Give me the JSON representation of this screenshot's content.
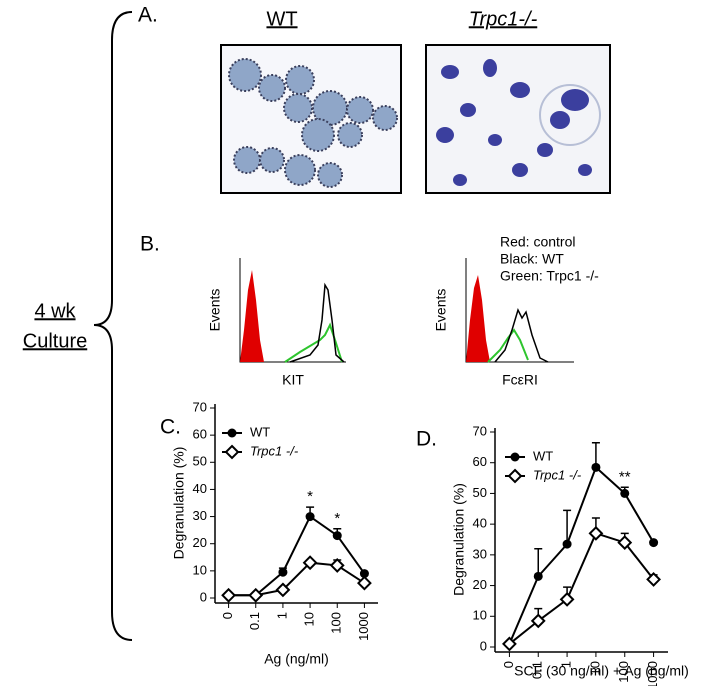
{
  "figure": {
    "side_label": [
      "4 wk",
      "Culture"
    ],
    "panel_a": {
      "label": "A.",
      "wt": "WT",
      "ko": "Trpc1-/-"
    },
    "panel_b": {
      "label": "B.",
      "legend": [
        "Red: control",
        "Black: WT",
        "Green: Trpc1 -/-"
      ],
      "y_label": "Events",
      "x_labels": [
        "KIT",
        "FcεRI"
      ]
    }
  },
  "chart_data": [
    {
      "type": "line",
      "label": "C.",
      "x_label": "Ag (ng/ml)",
      "y_label": "Degranulation (%)",
      "categories": [
        "0",
        "0.1",
        "1",
        "10",
        "100",
        "1000"
      ],
      "ylim": [
        0,
        70
      ],
      "yticks": [
        0,
        10,
        20,
        30,
        40,
        50,
        60,
        70
      ],
      "series": [
        {
          "name": "WT",
          "color": "#000000",
          "marker": "circle",
          "values": [
            1,
            1,
            9.5,
            30,
            23,
            9
          ],
          "errors": [
            0,
            0,
            1.5,
            3.5,
            2.5,
            0
          ]
        },
        {
          "name": "Trpc1 -/-",
          "color": "#000000",
          "marker": "diamond",
          "values": [
            1,
            1,
            3,
            13,
            12,
            5.5
          ],
          "errors": [
            0,
            0,
            1,
            0,
            2,
            0
          ]
        }
      ],
      "annotations": [
        "*",
        "*"
      ]
    },
    {
      "type": "line",
      "label": "D.",
      "x_label": "SCF (30 ng/ml) + Ag (ng/ml)",
      "y_label": "Degranulation (%)",
      "categories": [
        "0",
        "0.1",
        "1",
        "10",
        "100",
        "1000"
      ],
      "ylim": [
        0,
        70
      ],
      "yticks": [
        0,
        10,
        20,
        30,
        40,
        50,
        60,
        70
      ],
      "series": [
        {
          "name": "WT",
          "color": "#000000",
          "marker": "circle",
          "values": [
            1,
            23,
            33.5,
            58.5,
            50,
            34
          ],
          "errors": [
            0,
            9,
            11,
            8,
            2,
            0
          ]
        },
        {
          "name": "Trpc1 -/-",
          "color": "#000000",
          "marker": "diamond",
          "values": [
            1,
            8.5,
            15.5,
            37,
            34,
            22
          ],
          "errors": [
            0,
            4,
            4,
            5,
            3,
            1.5
          ]
        }
      ],
      "annotations": [
        "**"
      ]
    }
  ]
}
